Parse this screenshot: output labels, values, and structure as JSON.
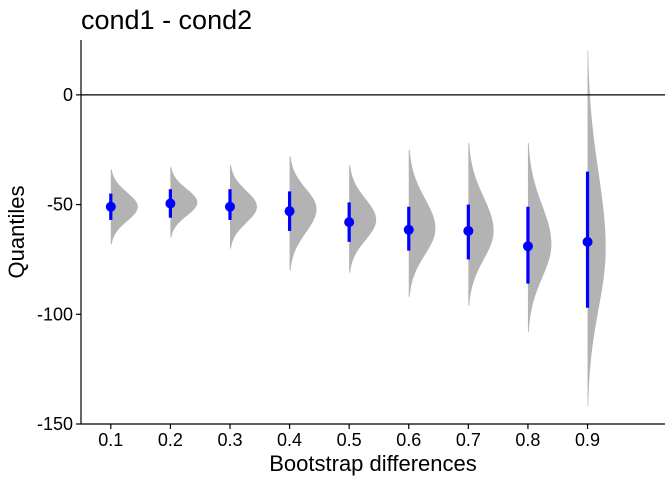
{
  "chart_data": {
    "type": "scatter",
    "title": "cond1 - cond2",
    "xlabel": "Bootstrap differences",
    "ylabel": "Quantiles",
    "ylim": [
      -150,
      25
    ],
    "xlim": [
      0.05,
      1.03
    ],
    "x_ticks": [
      "0.1",
      "0.2",
      "0.3",
      "0.4",
      "0.5",
      "0.6",
      "0.7",
      "0.8",
      "0.9"
    ],
    "y_ticks": [
      "0",
      "-50",
      "-100",
      "-150"
    ],
    "reference_line": 0,
    "grid": false,
    "colors": {
      "point": "#0000ff",
      "interval": "#0000ff",
      "density": "#b3b3b3",
      "axis": "#000000"
    },
    "series": [
      {
        "values": [
          {
            "x": 0.1,
            "estimate": -51,
            "ci_low": -57,
            "ci_high": -45,
            "dist_min": -68,
            "dist_max": -34,
            "dist_mode": -51
          },
          {
            "x": 0.2,
            "estimate": -49.5,
            "ci_low": -56,
            "ci_high": -43,
            "dist_min": -65,
            "dist_max": -33,
            "dist_mode": -49
          },
          {
            "x": 0.3,
            "estimate": -51,
            "ci_low": -57,
            "ci_high": -43,
            "dist_min": -70,
            "dist_max": -32,
            "dist_mode": -51
          },
          {
            "x": 0.4,
            "estimate": -53,
            "ci_low": -62,
            "ci_high": -44,
            "dist_min": -80,
            "dist_max": -28,
            "dist_mode": -52
          },
          {
            "x": 0.5,
            "estimate": -58,
            "ci_low": -67,
            "ci_high": -49,
            "dist_min": -81,
            "dist_max": -32,
            "dist_mode": -57
          },
          {
            "x": 0.6,
            "estimate": -61.5,
            "ci_low": -71,
            "ci_high": -51,
            "dist_min": -92,
            "dist_max": -25,
            "dist_mode": -61
          },
          {
            "x": 0.7,
            "estimate": -62,
            "ci_low": -75,
            "ci_high": -50,
            "dist_min": -96,
            "dist_max": -22,
            "dist_mode": -62
          },
          {
            "x": 0.8,
            "estimate": -69,
            "ci_low": -86,
            "ci_high": -51,
            "dist_min": -108,
            "dist_max": -22,
            "dist_mode": -68
          },
          {
            "x": 0.9,
            "estimate": -67,
            "ci_low": -97,
            "ci_high": -35,
            "dist_min": -142,
            "dist_max": 20,
            "dist_mode": -70
          }
        ]
      }
    ]
  }
}
